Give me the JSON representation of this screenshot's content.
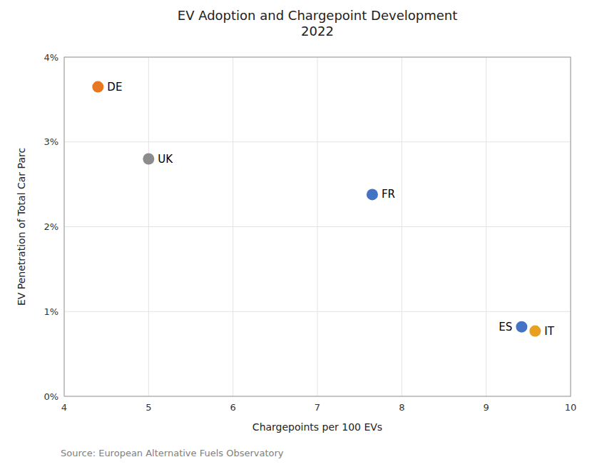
{
  "chart_data": {
    "type": "scatter",
    "title": "EV Adoption and Chargepoint Development\n2022",
    "xlabel": "Chargepoints per 100 EVs",
    "ylabel": "EV Penetration of Total Car Parc",
    "annotations": [
      "Source: European Alternative Fuels Observatory"
    ],
    "categories": [
      "DE",
      "UK",
      "FR",
      "ES",
      "IT"
    ],
    "x": [
      4.4,
      5.0,
      7.65,
      9.42,
      9.58
    ],
    "values": [
      0.0365,
      0.028,
      0.0238,
      0.0082,
      0.0077
    ],
    "colors": [
      "#E87722",
      "#8C8C8C",
      "#4472C4",
      "#4472C4",
      "#E8A020"
    ],
    "xlim": [
      4,
      10
    ],
    "ylim": [
      0,
      0.04
    ],
    "xticks": [
      4,
      5,
      6,
      7,
      8,
      9,
      10
    ],
    "yticks": [
      {
        "value": 0.0,
        "label": "0%"
      },
      {
        "value": 0.01,
        "label": "1%"
      },
      {
        "value": 0.02,
        "label": "2%"
      },
      {
        "value": 0.03,
        "label": "3%"
      },
      {
        "value": 0.04,
        "label": "4%"
      }
    ],
    "grid": true
  }
}
